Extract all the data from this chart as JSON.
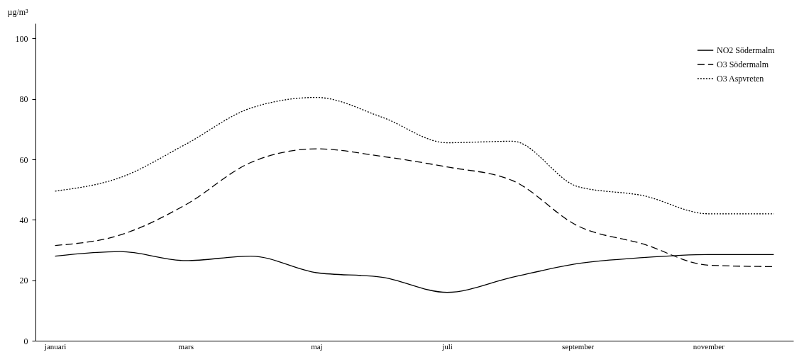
{
  "chart_data": {
    "type": "line",
    "ylabel": "µg/m³",
    "categories": [
      "januari",
      null,
      "mars",
      null,
      "maj",
      null,
      "juli",
      null,
      "september",
      null,
      "november",
      null
    ],
    "series": [
      {
        "name": "NO2 Södermalm",
        "color": "#000000",
        "line_style": "solid",
        "values": [
          28,
          29.5,
          26.5,
          28,
          22.5,
          21,
          16,
          21,
          25.5,
          27.5,
          28.5,
          28.5
        ]
      },
      {
        "name": "O3  Södermalm",
        "color": "#000000",
        "line_style": "dashed",
        "values": [
          31.5,
          35,
          45,
          59,
          63.5,
          61,
          57.5,
          53,
          38,
          32,
          25,
          24.5
        ]
      },
      {
        "name": "O3 Aspvreten",
        "color": "#000000",
        "line_style": "dotted",
        "values": [
          49.5,
          54,
          65,
          77,
          80.5,
          74,
          65.5,
          66,
          51,
          48,
          42,
          42
        ]
      }
    ],
    "ylim": [
      0,
      105
    ],
    "yticks": [
      0,
      20,
      40,
      60,
      80,
      100
    ],
    "grid": false,
    "legend": "top right",
    "marker": "none"
  }
}
